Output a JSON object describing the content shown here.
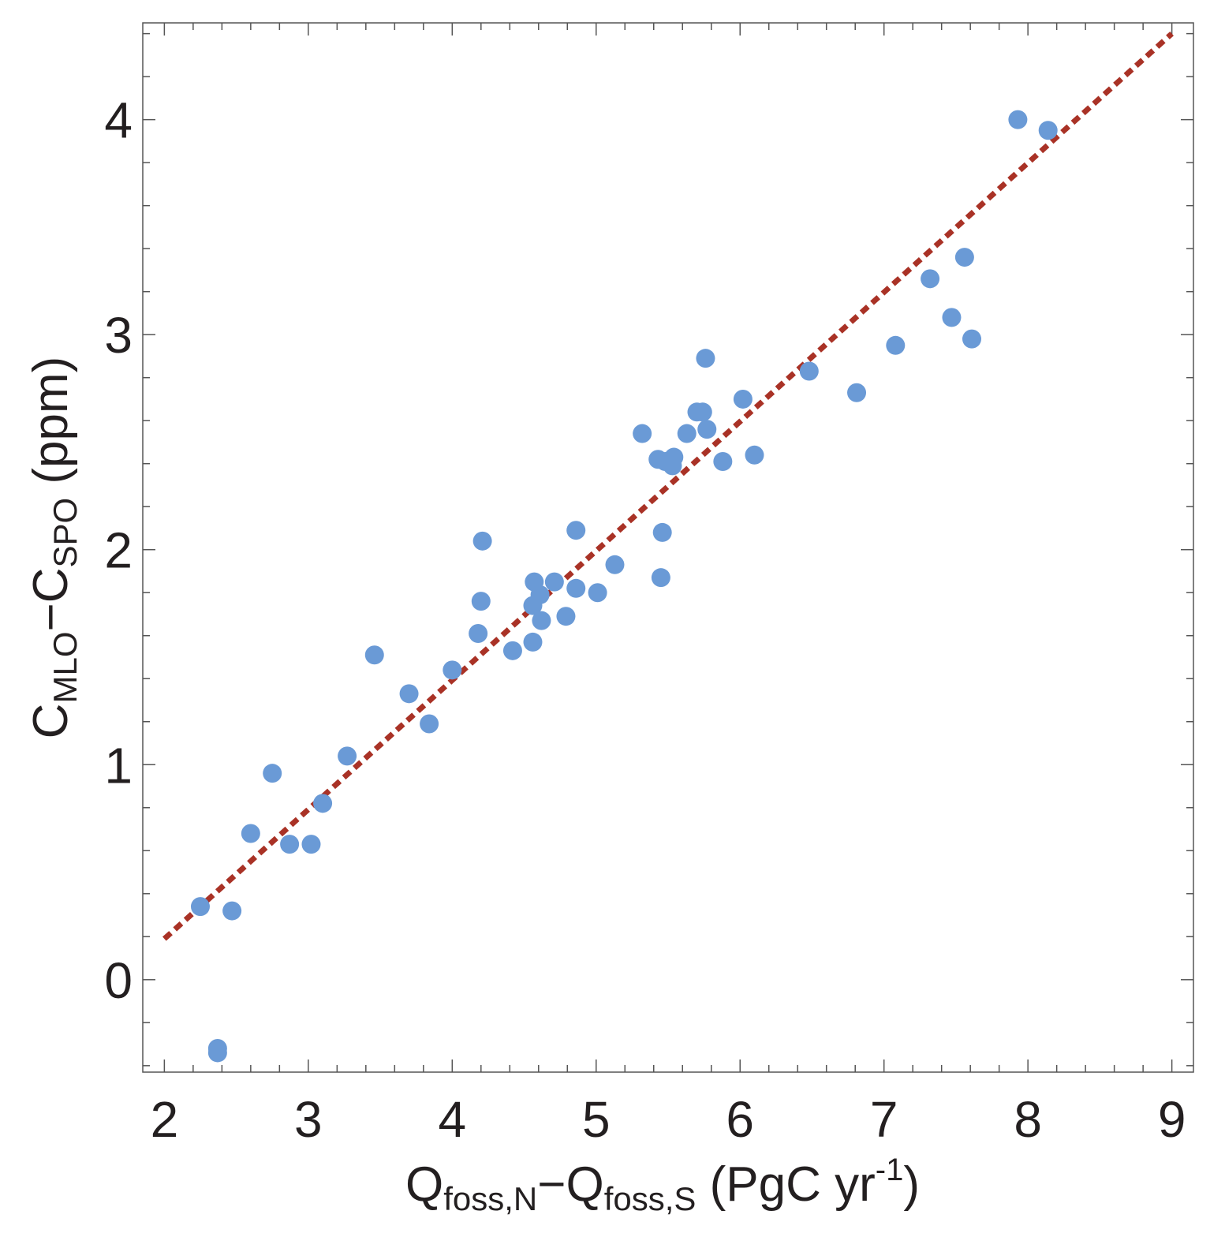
{
  "chart_data": {
    "type": "scatter",
    "xlim": [
      1.85,
      9.15
    ],
    "ylim": [
      -0.43,
      4.45
    ],
    "x_ticks": [
      "2",
      "3",
      "4",
      "5",
      "6",
      "7",
      "8",
      "9"
    ],
    "y_ticks": [
      "0",
      "1",
      "2",
      "3",
      "4"
    ],
    "xlabel": {
      "main": "Q",
      "sub1": "foss,N",
      "minus": "−Q",
      "sub2": "foss,S",
      "unit_open": " (PgC yr",
      "unit_sup": "-1",
      "unit_close": ")"
    },
    "ylabel": {
      "main": "C",
      "sub1": "MLO",
      "minus": "−C",
      "sub2": "SPO",
      "unit": " (ppm)"
    },
    "grid": false,
    "point_color": "#6a9ad6",
    "fit_color": "#a93226",
    "fit_line": {
      "x": [
        2.0,
        9.0
      ],
      "y": [
        0.19,
        4.4
      ]
    },
    "points": [
      {
        "x": 2.25,
        "y": 0.34
      },
      {
        "x": 2.37,
        "y": -0.32
      },
      {
        "x": 2.37,
        "y": -0.34
      },
      {
        "x": 2.47,
        "y": 0.32
      },
      {
        "x": 2.6,
        "y": 0.68
      },
      {
        "x": 2.75,
        "y": 0.96
      },
      {
        "x": 2.87,
        "y": 0.63
      },
      {
        "x": 3.02,
        "y": 0.63
      },
      {
        "x": 3.1,
        "y": 0.82
      },
      {
        "x": 3.27,
        "y": 1.04
      },
      {
        "x": 3.46,
        "y": 1.51
      },
      {
        "x": 3.7,
        "y": 1.33
      },
      {
        "x": 3.84,
        "y": 1.19
      },
      {
        "x": 4.0,
        "y": 1.44
      },
      {
        "x": 4.18,
        "y": 1.61
      },
      {
        "x": 4.2,
        "y": 1.76
      },
      {
        "x": 4.21,
        "y": 2.04
      },
      {
        "x": 4.42,
        "y": 1.53
      },
      {
        "x": 4.56,
        "y": 1.57
      },
      {
        "x": 4.56,
        "y": 1.74
      },
      {
        "x": 4.57,
        "y": 1.85
      },
      {
        "x": 4.61,
        "y": 1.79
      },
      {
        "x": 4.62,
        "y": 1.67
      },
      {
        "x": 4.71,
        "y": 1.85
      },
      {
        "x": 4.79,
        "y": 1.69
      },
      {
        "x": 4.86,
        "y": 1.82
      },
      {
        "x": 4.86,
        "y": 2.09
      },
      {
        "x": 5.01,
        "y": 1.8
      },
      {
        "x": 5.13,
        "y": 1.93
      },
      {
        "x": 5.32,
        "y": 2.54
      },
      {
        "x": 5.43,
        "y": 2.42
      },
      {
        "x": 5.45,
        "y": 1.87
      },
      {
        "x": 5.46,
        "y": 2.08
      },
      {
        "x": 5.48,
        "y": 2.41
      },
      {
        "x": 5.53,
        "y": 2.39
      },
      {
        "x": 5.54,
        "y": 2.43
      },
      {
        "x": 5.63,
        "y": 2.54
      },
      {
        "x": 5.7,
        "y": 2.64
      },
      {
        "x": 5.74,
        "y": 2.64
      },
      {
        "x": 5.76,
        "y": 2.89
      },
      {
        "x": 5.77,
        "y": 2.56
      },
      {
        "x": 5.88,
        "y": 2.41
      },
      {
        "x": 6.02,
        "y": 2.7
      },
      {
        "x": 6.1,
        "y": 2.44
      },
      {
        "x": 6.48,
        "y": 2.83
      },
      {
        "x": 6.81,
        "y": 2.73
      },
      {
        "x": 7.08,
        "y": 2.95
      },
      {
        "x": 7.32,
        "y": 3.26
      },
      {
        "x": 7.47,
        "y": 3.08
      },
      {
        "x": 7.56,
        "y": 3.36
      },
      {
        "x": 7.61,
        "y": 2.98
      },
      {
        "x": 7.93,
        "y": 4.0
      },
      {
        "x": 8.14,
        "y": 3.95
      }
    ]
  }
}
